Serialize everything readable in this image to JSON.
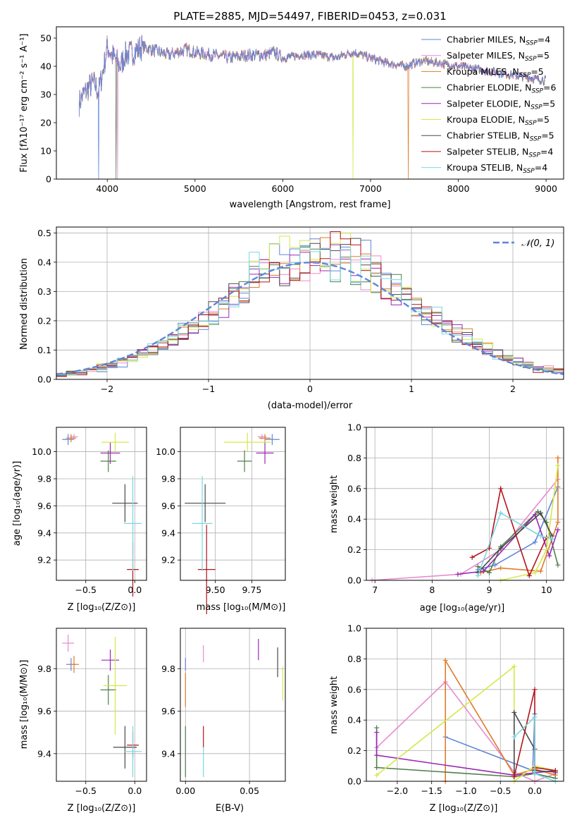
{
  "colors": {
    "chabrier_miles": "#5f86d9",
    "salpeter_miles": "#e88bd0",
    "kroupa_miles": "#e07b2a",
    "chabrier_elodie": "#4f7f4a",
    "salpeter_elodie": "#9b28b5",
    "kroupa_elodie": "#d5e84a",
    "chabrier_stelib": "#4a4a4a",
    "salpeter_stelib": "#b3141c",
    "kroupa_stelib": "#7ad7e0",
    "normal": "#5f86d9"
  },
  "chart_data": [
    {
      "id": "spectrum",
      "type": "line",
      "title": "PLATE=2885, MJD=54497, FIBERID=0453, z=0.031",
      "xlabel": "wavelength [Angstrom, rest frame]",
      "ylabel": "Flux [fλ10⁻¹⁷ erg cm⁻² s⁻¹ A⁻¹]",
      "xlim": [
        3420,
        9200
      ],
      "ylim": [
        0,
        54
      ],
      "xticks": [
        4000,
        5000,
        6000,
        7000,
        8000,
        9000
      ],
      "yticks": [
        0,
        10,
        20,
        30,
        40,
        50
      ],
      "legend_position": "top-right",
      "spectrum_outline": {
        "x": [
          3680,
          3750,
          3800,
          3850,
          3900,
          3950,
          4000,
          4050,
          4100,
          4150,
          4200,
          4300,
          4400,
          4500,
          4600,
          4700,
          4800,
          4900,
          5000,
          5200,
          5400,
          5600,
          5800,
          5900,
          6000,
          6200,
          6400,
          6600,
          6800,
          7000,
          7200,
          7400,
          7600,
          7800,
          8000,
          8200,
          8400,
          8600,
          8800,
          9000
        ],
        "y": [
          27,
          31,
          33,
          34,
          31,
          38,
          47,
          44,
          42,
          40,
          44,
          45,
          47,
          46,
          45,
          44,
          45,
          46,
          45,
          44,
          43,
          44,
          44,
          45,
          43,
          44,
          44,
          43,
          45,
          43,
          41,
          40,
          42,
          41,
          40,
          39,
          38,
          37,
          36,
          35
        ]
      },
      "series": [
        {
          "name": "Chabrier MILES, N",
          "nssp": "4"
        },
        {
          "name": "Salpeter MILES, N",
          "nssp": "5"
        },
        {
          "name": "Kroupa MILES, N",
          "nssp": "5"
        },
        {
          "name": "Chabrier ELODIE, N",
          "nssp": "6"
        },
        {
          "name": "Salpeter ELODIE, N",
          "nssp": "5"
        },
        {
          "name": "Kroupa ELODIE, N",
          "nssp": "5"
        },
        {
          "name": "Chabrier STELIB, N",
          "nssp": "5"
        },
        {
          "name": "Salpeter STELIB, N",
          "nssp": "4"
        },
        {
          "name": "Kroupa STELIB, N",
          "nssp": "4"
        }
      ],
      "legend_subscript": "SSP"
    },
    {
      "id": "residuals",
      "type": "bar",
      "xlabel": "(data-model)/error",
      "ylabel": "Normed distribution",
      "xlim": [
        -2.5,
        2.5
      ],
      "ylim": [
        0,
        0.52
      ],
      "xticks": [
        -2,
        -1,
        0,
        1,
        2
      ],
      "yticks": [
        0.0,
        0.1,
        0.2,
        0.3,
        0.4,
        0.5
      ],
      "bin_edges_start": -2.5,
      "bin_width": 0.1,
      "gaussian": {
        "name": "𝒩(0, 1)",
        "mean": 0,
        "sigma": 1
      }
    },
    {
      "id": "age_vs_Z",
      "type": "scatter",
      "xlabel": "Z [log₁₀(Z/Z⊙)]",
      "ylabel": "age  [log₁₀(age/yr)]",
      "xlim": [
        -0.8,
        0.12
      ],
      "ylim": [
        9.05,
        10.18
      ],
      "xticks": [
        -0.5,
        0.0
      ],
      "yticks": [
        9.2,
        9.4,
        9.6,
        9.8,
        10.0
      ],
      "points": [
        {
          "x": -0.68,
          "y": 10.09,
          "xerr": 0.06,
          "yerr": 0.04
        },
        {
          "x": -0.62,
          "y": 10.11,
          "xerr": 0.04,
          "yerr": 0.02
        },
        {
          "x": -0.65,
          "y": 10.1,
          "xerr": 0.05,
          "yerr": 0.03
        },
        {
          "x": -0.27,
          "y": 9.93,
          "xerr": 0.08,
          "yerr": 0.08
        },
        {
          "x": -0.25,
          "y": 9.99,
          "xerr": 0.1,
          "yerr": 0.08
        },
        {
          "x": -0.2,
          "y": 10.07,
          "xerr": 0.14,
          "yerr": 0.07
        },
        {
          "x": -0.1,
          "y": 9.62,
          "xerr": 0.13,
          "yerr": 0.14
        },
        {
          "x": -0.02,
          "y": 9.13,
          "xerr": 0.06,
          "yerr": 0.2
        },
        {
          "x": -0.02,
          "y": 9.47,
          "xerr": 0.09,
          "yerr": 0.35
        }
      ]
    },
    {
      "id": "age_vs_mass",
      "type": "scatter",
      "xlabel": "mass [log₁₀(M/M⊙)]",
      "ylabel": "",
      "xlim": [
        9.26,
        9.98
      ],
      "ylim": [
        9.05,
        10.18
      ],
      "xticks": [
        9.5,
        9.75
      ],
      "yticks": [
        9.2,
        9.4,
        9.6,
        9.8,
        10.0
      ],
      "points": [
        {
          "x": 9.89,
          "y": 10.09,
          "xerr": 0.05,
          "yerr": 0.04
        },
        {
          "x": 9.82,
          "y": 10.11,
          "xerr": 0.03,
          "yerr": 0.02
        },
        {
          "x": 9.84,
          "y": 10.1,
          "xerr": 0.04,
          "yerr": 0.03
        },
        {
          "x": 9.7,
          "y": 9.93,
          "xerr": 0.05,
          "yerr": 0.08
        },
        {
          "x": 9.84,
          "y": 9.99,
          "xerr": 0.06,
          "yerr": 0.08
        },
        {
          "x": 9.72,
          "y": 10.07,
          "xerr": 0.16,
          "yerr": 0.07
        },
        {
          "x": 9.43,
          "y": 9.62,
          "xerr": 0.14,
          "yerr": 0.14
        },
        {
          "x": 9.44,
          "y": 9.13,
          "xerr": 0.06,
          "yerr": 0.33
        },
        {
          "x": 9.41,
          "y": 9.47,
          "xerr": 0.07,
          "yerr": 0.35
        }
      ]
    },
    {
      "id": "weight_vs_age",
      "type": "line",
      "xlabel": "age  [log₁₀(age/yr)]",
      "ylabel": "mass weight",
      "xlim": [
        6.85,
        10.3
      ],
      "ylim": [
        0,
        1
      ],
      "xticks": [
        7,
        8,
        9,
        10
      ],
      "yticks": [
        0.0,
        0.2,
        0.4,
        0.6,
        0.8,
        1.0
      ],
      "series": [
        {
          "x": [
            8.8,
            9.1,
            9.8,
            10.2
          ],
          "y": [
            0.07,
            0.1,
            0.25,
            0.61
          ]
        },
        {
          "x": [
            6.95,
            8.5,
            9.2,
            10.2
          ],
          "y": [
            0.0,
            0.04,
            0.2,
            0.66
          ]
        },
        {
          "x": [
            8.85,
            9.2,
            9.9,
            10.2,
            10.2
          ],
          "y": [
            0.05,
            0.08,
            0.06,
            0.38,
            0.8
          ]
        },
        {
          "x": [
            8.8,
            9.0,
            9.2,
            9.85,
            10.0,
            10.2
          ],
          "y": [
            0.09,
            0.05,
            0.22,
            0.45,
            0.38,
            0.1
          ]
        },
        {
          "x": [
            8.45,
            8.9,
            9.8,
            10.05,
            10.2
          ],
          "y": [
            0.04,
            0.06,
            0.43,
            0.16,
            0.33
          ]
        },
        {
          "x": [
            9.2,
            9.8,
            10.0,
            10.2
          ],
          "y": [
            0.0,
            0.05,
            0.2,
            0.75
          ]
        },
        {
          "x": [
            8.8,
            9.2,
            9.9,
            10.1
          ],
          "y": [
            0.05,
            0.21,
            0.44,
            0.29
          ]
        },
        {
          "x": [
            8.7,
            9.0,
            9.2,
            9.7,
            10.0
          ],
          "y": [
            0.15,
            0.21,
            0.6,
            0.03,
            0.28
          ]
        },
        {
          "x": [
            8.8,
            9.2,
            9.9,
            10.1
          ],
          "y": [
            0.03,
            0.44,
            0.29,
            0.27
          ]
        }
      ]
    },
    {
      "id": "mass_vs_Z",
      "type": "scatter",
      "xlabel": "Z [log₁₀(Z/Z⊙)]",
      "ylabel": "mass [log₁₀(M/M⊙)]",
      "xlim": [
        -0.8,
        0.12
      ],
      "ylim": [
        9.27,
        9.99
      ],
      "xticks": [
        -0.5,
        0.0
      ],
      "yticks": [
        9.4,
        9.6,
        9.8
      ],
      "points": [
        {
          "x": -0.65,
          "y": 9.82,
          "xerr": 0.05,
          "yerr": 0.03
        },
        {
          "x": -0.68,
          "y": 9.92,
          "xerr": 0.06,
          "yerr": 0.04
        },
        {
          "x": -0.62,
          "y": 9.82,
          "xerr": 0.05,
          "yerr": 0.04
        },
        {
          "x": -0.27,
          "y": 9.7,
          "xerr": 0.08,
          "yerr": 0.07
        },
        {
          "x": -0.25,
          "y": 9.84,
          "xerr": 0.09,
          "yerr": 0.05
        },
        {
          "x": -0.2,
          "y": 9.72,
          "xerr": 0.12,
          "yerr": 0.23
        },
        {
          "x": -0.1,
          "y": 9.43,
          "xerr": 0.12,
          "yerr": 0.1
        },
        {
          "x": -0.02,
          "y": 9.44,
          "xerr": 0.06,
          "yerr": 0.06
        },
        {
          "x": -0.02,
          "y": 9.41,
          "xerr": 0.09,
          "yerr": 0.12
        }
      ]
    },
    {
      "id": "mass_vs_EBV",
      "type": "scatter",
      "xlabel": "E(B-V)",
      "ylabel": "",
      "xlim": [
        -0.004,
        0.078
      ],
      "ylim": [
        9.27,
        9.99
      ],
      "xticks": [
        0.0,
        0.05
      ],
      "yticks": [
        9.4,
        9.6,
        9.8
      ],
      "points": [
        {
          "x": 0.0,
          "y": 9.82,
          "xerr": 0.0,
          "yerr": 0.03
        },
        {
          "x": 0.014,
          "y": 9.87,
          "xerr": 0.0,
          "yerr": 0.04
        },
        {
          "x": 0.0,
          "y": 9.7,
          "xerr": 0.0,
          "yerr": 0.08
        },
        {
          "x": 0.0,
          "y": 9.41,
          "xerr": 0.0,
          "yerr": 0.12
        },
        {
          "x": 0.057,
          "y": 9.89,
          "xerr": 0.0,
          "yerr": 0.05
        },
        {
          "x": 0.076,
          "y": 9.73,
          "xerr": 0.0,
          "yerr": 0.08
        },
        {
          "x": 0.072,
          "y": 9.83,
          "xerr": 0.0,
          "yerr": 0.07
        },
        {
          "x": 0.014,
          "y": 9.48,
          "xerr": 0.0,
          "yerr": 0.05
        },
        {
          "x": 0.014,
          "y": 9.36,
          "xerr": 0.0,
          "yerr": 0.07
        }
      ]
    },
    {
      "id": "weight_vs_Z",
      "type": "line",
      "xlabel": "Z [log₁₀(Z/Z⊙)]",
      "ylabel": "mass weight",
      "xlim": [
        -2.45,
        0.42
      ],
      "ylim": [
        0,
        1
      ],
      "xticks": [
        -2.0,
        -1.5,
        -1.0,
        -0.5,
        0.0
      ],
      "yticks": [
        0.0,
        0.2,
        0.4,
        0.6,
        0.8,
        1.0
      ],
      "series": [
        {
          "x": [
            -1.3,
            -0.03,
            0.0
          ],
          "y": [
            0.29,
            0.07,
            0.44
          ]
        },
        {
          "x": [
            -2.3,
            -1.3,
            -0.3,
            0.0,
            0.3
          ],
          "y": [
            0.22,
            0.65,
            0.06,
            0.0,
            0.05
          ]
        },
        {
          "x": [
            -1.3,
            -1.3,
            -0.3,
            0.0,
            0.3
          ],
          "y": [
            0.0,
            0.79,
            0.04,
            0.08,
            0.04
          ]
        },
        {
          "x": [
            -2.3,
            -2.3,
            -0.3,
            0.0,
            0.3
          ],
          "y": [
            0.35,
            0.09,
            0.03,
            0.05,
            0.02
          ]
        },
        {
          "x": [
            -2.3,
            -2.3,
            -0.3,
            0.3,
            0.3
          ],
          "y": [
            0.32,
            0.17,
            0.04,
            0.07,
            0.06
          ]
        },
        {
          "x": [
            -2.3,
            -0.3,
            -0.3,
            0.0,
            0.3
          ],
          "y": [
            0.04,
            0.75,
            0.0,
            0.1,
            0.07
          ]
        },
        {
          "x": [
            -0.3,
            -0.3,
            0.0,
            0.0,
            0.3
          ],
          "y": [
            0.03,
            0.45,
            0.21,
            0.07,
            0.06
          ]
        },
        {
          "x": [
            -0.3,
            0.0,
            0.0,
            0.3
          ],
          "y": [
            0.03,
            0.6,
            0.09,
            0.07
          ]
        },
        {
          "x": [
            -0.3,
            0.0,
            0.0,
            0.3
          ],
          "y": [
            0.29,
            0.42,
            0.05,
            0.0
          ]
        }
      ]
    }
  ]
}
